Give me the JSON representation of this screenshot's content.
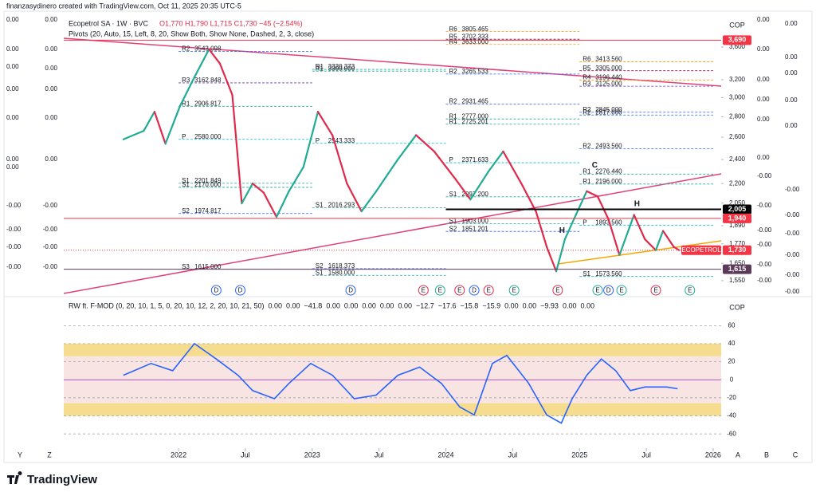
{
  "header": {
    "credit": "finanzasydinero created with TradingView.com, Oct 11, 2025 20:35 UTC-5",
    "symbol": "Ecopetrol SA · 1W · BVC",
    "ohlc": "O1,770 H1,790 L1,715 C1,730 −45 (−2.54%)",
    "pivots_title": "Pivots (20, Auto, 15, Left, 8, 20, Show Both, Show None, Dashed, 2, 3, close)"
  },
  "chart_data": [
    {
      "type": "line",
      "currency": "COP",
      "log_scale": true,
      "x": [
        2021.587,
        2021.739,
        2021.82,
        2021.902,
        2022.011,
        2022.119,
        2022.228,
        2022.31,
        2022.402,
        2022.473,
        2022.554,
        2022.636,
        2022.733,
        2022.826,
        2022.934,
        2023.043,
        2023.152,
        2023.26,
        2023.369,
        2023.478,
        2023.641,
        2023.777,
        2023.913,
        2024.076,
        2024.184,
        2024.32,
        2024.429,
        2024.565,
        2024.674,
        2024.755,
        2024.826,
        2024.891,
        2024.973,
        2025.054,
        2025.136,
        2025.217,
        2025.299,
        2025.408,
        2025.489,
        2025.571,
        2025.625,
        2025.706,
        2025.745
      ],
      "series": [
        {
          "name": "ECOPETROL",
          "up_color": "#22ab94",
          "down_color": "#e0294a",
          "values": [
            2580,
            2660,
            2850,
            2540,
            2910,
            3230,
            3570,
            3390,
            3030,
            2048,
            2200,
            2130,
            1950,
            2140,
            2334,
            2850,
            2617,
            2200,
            1990,
            2138,
            2400,
            2620,
            2470,
            2230,
            2077,
            2300,
            2470,
            2200,
            1990,
            1750,
            1603,
            1800,
            1965,
            2140,
            2100,
            1934,
            1700,
            1965,
            1800,
            1730,
            1855,
            1750,
            1730
          ]
        }
      ],
      "xlim": [
        2021.141,
        2026.06
      ],
      "xticks": [
        {
          "value": 2022,
          "label": "2022"
        },
        {
          "value": 2022.5,
          "label": "Jul"
        },
        {
          "value": 2023,
          "label": "2023"
        },
        {
          "value": 2023.5,
          "label": "Jul"
        },
        {
          "value": 2024,
          "label": "2024"
        },
        {
          "value": 2024.5,
          "label": "Jul"
        },
        {
          "value": 2025,
          "label": "2025"
        },
        {
          "value": 2025.5,
          "label": "Jul"
        },
        {
          "value": 2026,
          "label": "2026"
        }
      ],
      "ylim": [
        1480,
        4050
      ],
      "yticks": [
        {
          "value": 3600,
          "label": "3,600"
        },
        {
          "value": 3200,
          "label": "3,200"
        },
        {
          "value": 3000,
          "label": "3,000"
        },
        {
          "value": 2800,
          "label": "2,800"
        },
        {
          "value": 2600,
          "label": "2,600"
        },
        {
          "value": 2400,
          "label": "2,400"
        },
        {
          "value": 2200,
          "label": "2,200"
        },
        {
          "value": 2050,
          "label": "2,050"
        },
        {
          "value": 1890,
          "label": "1,890"
        },
        {
          "value": 1770,
          "label": "1,770"
        },
        {
          "value": 1650,
          "label": "1,650"
        },
        {
          "value": 1550,
          "label": "1,550"
        }
      ],
      "price_tags": [
        {
          "value": 3690,
          "label": "3,690",
          "color": "#f23645"
        },
        {
          "value": 2005,
          "label": "2,005",
          "color": "#000000"
        },
        {
          "value": 1940,
          "label": "1,940",
          "color": "#f23645"
        },
        {
          "value": 1730,
          "label": "1,730",
          "name": "ECOPETROL",
          "color": "#f23645"
        },
        {
          "value": 1615,
          "label": "1,615",
          "color": "#5d3a5a"
        }
      ],
      "pivot_colors": {
        "R6": "#ff9800",
        "R5": "#880e4f",
        "R4": "#ff9800",
        "R3": "#673ab7",
        "R2": "#2962ff",
        "R1": "#26a69a",
        "P": "#00bcd4",
        "S1": "#26a69a",
        "S2": "#2962ff",
        "S3": "#311b92"
      },
      "pivots": [
        {
          "period": 2022,
          "name": "R2",
          "value": 3543.098,
          "label": "3543.098"
        },
        {
          "period": 2022,
          "name": "R3",
          "value": 3162.848,
          "label": "3162.848"
        },
        {
          "period": 2022,
          "name": "R1",
          "value": 2906.817,
          "label": "2906.817"
        },
        {
          "period": 2022,
          "name": "P",
          "value": 2580,
          "label": "2580.000"
        },
        {
          "period": 2022,
          "name": "S1",
          "value": 2201.849,
          "label": "2201.849"
        },
        {
          "period": 2022,
          "name": "S1",
          "value": 2170,
          "label": "2170.000"
        },
        {
          "period": 2022,
          "name": "S2",
          "value": 1974.817,
          "label": "1974.817"
        },
        {
          "period": 2022,
          "name": "S3",
          "value": 1615,
          "label": "1615.000"
        },
        {
          "period": 2023,
          "name": "R1",
          "value": 3320.373,
          "label": "3320.373"
        },
        {
          "period": 2023,
          "name": "R1",
          "value": 3300,
          "label": "3300.000"
        },
        {
          "period": 2023,
          "name": "P",
          "value": 2543.333,
          "label": "2543.333"
        },
        {
          "period": 2023,
          "name": "S1",
          "value": 2016.293,
          "label": "2016.293"
        },
        {
          "period": 2023,
          "name": "S2",
          "value": 1618.373,
          "label": "1618.373"
        },
        {
          "period": 2023,
          "name": "S1",
          "value": 1580,
          "label": "1580.000"
        },
        {
          "period": 2024,
          "name": "R6",
          "value": 3805.465,
          "label": "3805.465"
        },
        {
          "period": 2024,
          "name": "R5",
          "value": 3702.333,
          "label": "3702.333"
        },
        {
          "period": 2024,
          "name": "R4",
          "value": 3633,
          "label": "3633.000"
        },
        {
          "period": 2024,
          "name": "R2",
          "value": 3265.533,
          "label": "3265.533"
        },
        {
          "period": 2024,
          "name": "R2",
          "value": 2931.465,
          "label": "2931.465"
        },
        {
          "period": 2024,
          "name": "R1",
          "value": 2777,
          "label": "2777.000"
        },
        {
          "period": 2024,
          "name": "R1",
          "value": 2725.201,
          "label": "2725.201"
        },
        {
          "period": 2024,
          "name": "P",
          "value": 2371.633,
          "label": "2371.633"
        },
        {
          "period": 2024,
          "name": "S1",
          "value": 2097.2,
          "label": "2097.200"
        },
        {
          "period": 2024,
          "name": "S1",
          "value": 1903,
          "label": "1903.000"
        },
        {
          "period": 2024,
          "name": "S2",
          "value": 1851.201,
          "label": "1851.201"
        },
        {
          "period": 2025,
          "name": "R6",
          "value": 3413.56,
          "label": "3413.560"
        },
        {
          "period": 2025,
          "name": "R5",
          "value": 3305,
          "label": "3305.000"
        },
        {
          "period": 2025,
          "name": "R4",
          "value": 3196.44,
          "label": "3196.440"
        },
        {
          "period": 2025,
          "name": "R3",
          "value": 3125,
          "label": "3125.000"
        },
        {
          "period": 2025,
          "name": "R2",
          "value": 2845,
          "label": "2845.000"
        },
        {
          "period": 2025,
          "name": "R2",
          "value": 2817,
          "label": "2817.000"
        },
        {
          "period": 2025,
          "name": "R2",
          "value": 2493.56,
          "label": "2493.560"
        },
        {
          "period": 2025,
          "name": "R1",
          "value": 2276.44,
          "label": "2276.440"
        },
        {
          "period": 2025,
          "name": "R1",
          "value": 2196,
          "label": "2196.000"
        },
        {
          "period": 2025,
          "name": "P",
          "value": 1893.56,
          "label": "1893.560"
        },
        {
          "period": 2025,
          "name": "S1",
          "value": 1573.56,
          "label": "1573.560"
        }
      ],
      "annotations": [
        {
          "text": "H",
          "x": 2024.87,
          "y": 1855,
          "color": "#f7a600"
        },
        {
          "text": "H",
          "x": 2025.43,
          "y": 2043,
          "color": "#f7a600"
        },
        {
          "text": "C",
          "x": 2025.114,
          "y": 2350,
          "color": "#f7a600"
        }
      ],
      "events": [
        {
          "x": 2022.282,
          "label": "D"
        },
        {
          "x": 2022.462,
          "label": "D"
        },
        {
          "x": 2023.288,
          "label": "D"
        },
        {
          "x": 2023.832,
          "label": "E"
        },
        {
          "x": 2023.957,
          "label": "E"
        },
        {
          "x": 2024.103,
          "label": "E"
        },
        {
          "x": 2024.212,
          "label": "D"
        },
        {
          "x": 2024.32,
          "label": "E"
        },
        {
          "x": 2024.511,
          "label": "E"
        },
        {
          "x": 2024.837,
          "label": "E"
        },
        {
          "x": 2025.136,
          "label": "E"
        },
        {
          "x": 2025.217,
          "label": "D"
        },
        {
          "x": 2025.315,
          "label": "E"
        },
        {
          "x": 2025.571,
          "label": "E"
        },
        {
          "x": 2025.826,
          "label": "E"
        }
      ],
      "left_scale_a": [
        "0.00",
        "0.00",
        "0.00",
        "0.00",
        "0.00",
        "0.00",
        "0.00",
        "-0.00",
        "-0.00",
        "-0.00",
        "-0.00"
      ],
      "left_scale_b": [
        "0.00",
        "0.00",
        "0.00",
        "0.00",
        "0.00",
        "0.00",
        "-0.00",
        "-0.00",
        "-0.00",
        "-0.00"
      ],
      "right_scale_a": [
        "0.00",
        "0.00",
        "0.00",
        "0.00",
        "0.00",
        "0.00",
        "-0.00",
        "-0.00",
        "-0.00",
        "-0.00",
        "-0.00",
        "-0.00"
      ],
      "right_scale_b": [
        "0.00",
        "0.00",
        "0.00",
        "0.00",
        "0.00",
        "-0.00",
        "-0.00",
        "-0.00",
        "-0.00",
        "-0.00",
        "-0.00"
      ]
    },
    {
      "type": "line",
      "title": "RW ft. F-MOD (0, 20, 10, 1, 5, 0, 20, 10, 12, 2, 20, 10, 21, 50)",
      "currency": "COP",
      "legend_values": [
        {
          "label": "0.00",
          "color": "#f5a623"
        },
        {
          "label": "0.00",
          "color": "#22ab94"
        },
        {
          "label": "−41.8",
          "color": "#9c27b0"
        },
        {
          "label": "0.00",
          "color": "#9c27b0"
        },
        {
          "label": "0.00",
          "color": "#9c27b0"
        },
        {
          "label": "0.00",
          "color": "#9c27b0"
        },
        {
          "label": "0.00",
          "color": "#e0294a"
        },
        {
          "label": "0.00",
          "color": "#2962ff"
        },
        {
          "label": "−12.7",
          "color": "#22ab94"
        },
        {
          "label": "−17.6",
          "color": "#e0294a"
        },
        {
          "label": "−15.8",
          "color": "#9c27b0"
        },
        {
          "label": "−15.9",
          "color": "#f5a623"
        },
        {
          "label": "0.00",
          "color": "#e0294a"
        },
        {
          "label": "0.00",
          "color": "#2962ff"
        },
        {
          "label": "−9.93",
          "color": "#2962ff"
        },
        {
          "label": "0.00",
          "color": "#e0294a"
        },
        {
          "label": "0.00",
          "color": "#e0294a"
        }
      ],
      "x": [
        2021.587,
        2021.793,
        2021.956,
        2022.119,
        2022.282,
        2022.445,
        2022.554,
        2022.717,
        2022.826,
        2022.989,
        2023.152,
        2023.315,
        2023.478,
        2023.641,
        2023.804,
        2023.967,
        2024.103,
        2024.212,
        2024.348,
        2024.456,
        2024.62,
        2024.755,
        2024.864,
        2024.945,
        2025.054,
        2025.163,
        2025.271,
        2025.38,
        2025.489,
        2025.652,
        2025.734
      ],
      "series": [
        {
          "color": "#2962ff",
          "values": [
            5,
            18,
            10,
            40,
            23,
            5,
            -12,
            -21,
            -4,
            18,
            5,
            -21,
            -17,
            5,
            14,
            -4,
            -30,
            -39,
            18,
            27,
            -4,
            -39,
            -48,
            -21,
            5,
            23,
            10,
            -12,
            -8,
            -8,
            -9.93
          ]
        }
      ],
      "bands": [
        {
          "from": -26,
          "to": 26,
          "color": "#f9e4e4"
        },
        {
          "from": 26,
          "to": 40,
          "color": "#f6dc8f"
        },
        {
          "from": -40,
          "to": -26,
          "color": "#f6dc8f"
        }
      ],
      "xlim": [
        2021.141,
        2026.06
      ],
      "ylim": [
        -74,
        85
      ],
      "yticks": [
        60,
        40,
        20,
        0,
        -20,
        -40,
        -60
      ]
    }
  ],
  "footer": {
    "brand": "TradingView",
    "buttons": [
      "Y",
      "Z",
      "A",
      "B",
      "C"
    ]
  }
}
